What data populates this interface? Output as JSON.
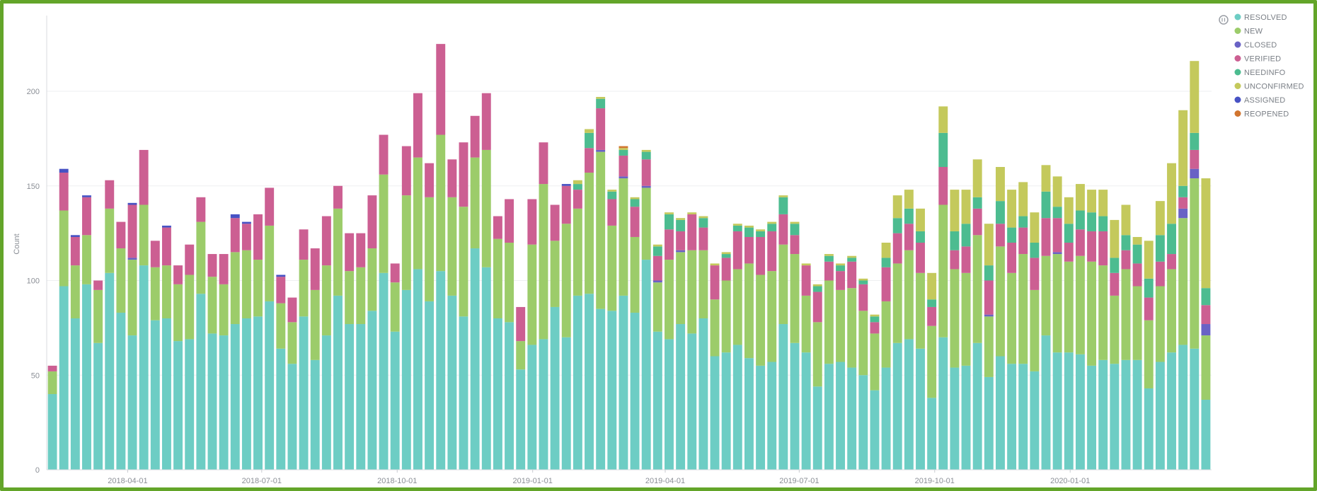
{
  "chart_data": {
    "type": "bar",
    "stacked": true,
    "ylabel": "Count",
    "ylim": [
      0,
      240
    ],
    "yticks": [
      0,
      50,
      100,
      150,
      200
    ],
    "xlim": [
      "2018-02-05",
      "2020-04-06"
    ],
    "xticks": [
      "2018-04-01",
      "2018-07-01",
      "2018-10-01",
      "2019-01-01",
      "2019-04-01",
      "2019-07-01",
      "2019-10-01",
      "2020-01-01"
    ],
    "interval": "week",
    "legend_position": "top-right",
    "series": [
      {
        "name": "RESOLVED",
        "color": "#6dcdc4",
        "values": [
          40,
          97,
          80,
          98,
          67,
          104,
          83,
          71,
          108,
          79,
          80,
          68,
          69,
          93,
          72,
          71,
          77,
          80,
          81,
          89,
          64,
          56,
          81,
          58,
          71,
          92,
          77,
          77,
          84,
          104,
          73,
          95,
          106,
          89,
          105,
          92,
          81,
          117,
          107,
          80,
          78,
          53,
          66,
          69,
          86,
          70,
          92,
          93,
          85,
          84,
          92,
          83,
          111,
          73,
          69,
          77,
          72,
          80,
          60,
          62,
          66,
          59,
          55,
          57,
          77,
          67,
          62,
          44,
          56,
          57,
          54,
          50,
          42,
          54,
          67,
          69,
          64,
          38,
          70,
          54,
          55,
          67,
          49,
          60,
          56,
          56,
          52,
          71,
          62,
          62,
          61,
          55,
          58,
          56,
          58,
          58,
          43,
          57,
          62,
          66,
          64,
          37
        ]
      },
      {
        "name": "NEW",
        "color": "#9ccc6a",
        "values": [
          12,
          40,
          28,
          26,
          28,
          34,
          34,
          40,
          32,
          28,
          28,
          30,
          34,
          38,
          30,
          27,
          38,
          36,
          30,
          40,
          24,
          22,
          30,
          37,
          37,
          46,
          28,
          30,
          33,
          52,
          26,
          50,
          59,
          55,
          72,
          52,
          58,
          48,
          62,
          42,
          42,
          15,
          53,
          82,
          35,
          60,
          46,
          64,
          83,
          45,
          62,
          40,
          38,
          26,
          42,
          38,
          44,
          36,
          30,
          38,
          40,
          50,
          48,
          48,
          42,
          47,
          30,
          34,
          44,
          38,
          42,
          34,
          30,
          35,
          42,
          47,
          40,
          38,
          70,
          52,
          49,
          57,
          32,
          58,
          48,
          58,
          43,
          42,
          52,
          48,
          52,
          55,
          50,
          36,
          48,
          39,
          36,
          40,
          44,
          67,
          90,
          34
        ]
      },
      {
        "name": "CLOSED",
        "color": "#6962c5",
        "values": [
          0,
          0,
          0,
          0,
          0,
          0,
          0,
          1,
          0,
          0,
          0,
          0,
          0,
          0,
          0,
          0,
          0,
          0,
          0,
          0,
          0,
          0,
          0,
          0,
          0,
          0,
          0,
          0,
          0,
          0,
          0,
          0,
          0,
          0,
          0,
          0,
          0,
          0,
          0,
          0,
          0,
          0,
          0,
          0,
          0,
          0,
          0,
          0,
          1,
          0,
          1,
          0,
          1,
          1,
          0,
          1,
          0,
          0,
          0,
          0,
          0,
          0,
          0,
          0,
          0,
          0,
          0,
          0,
          0,
          0,
          0,
          0,
          0,
          0,
          0,
          0,
          0,
          0,
          0,
          0,
          0,
          0,
          1,
          0,
          0,
          0,
          0,
          0,
          1,
          0,
          0,
          0,
          0,
          0,
          0,
          0,
          0,
          0,
          0,
          5,
          5,
          6
        ]
      },
      {
        "name": "VERIFIED",
        "color": "#cc5f92",
        "values": [
          3,
          20,
          15,
          20,
          5,
          15,
          14,
          28,
          29,
          14,
          20,
          10,
          16,
          13,
          12,
          16,
          18,
          14,
          24,
          20,
          14,
          13,
          16,
          22,
          26,
          12,
          20,
          18,
          28,
          21,
          10,
          26,
          34,
          18,
          48,
          20,
          34,
          22,
          30,
          12,
          23,
          18,
          24,
          22,
          19,
          20,
          10,
          13,
          22,
          14,
          11,
          16,
          14,
          13,
          16,
          10,
          19,
          12,
          18,
          12,
          20,
          14,
          20,
          21,
          16,
          10,
          16,
          16,
          10,
          10,
          14,
          14,
          6,
          18,
          16,
          14,
          16,
          10,
          20,
          10,
          14,
          14,
          18,
          12,
          16,
          14,
          17,
          20,
          18,
          10,
          14,
          16,
          18,
          12,
          10,
          12,
          12,
          13,
          8,
          6,
          10,
          10
        ]
      },
      {
        "name": "NEEDINFO",
        "color": "#4cbc90",
        "values": [
          0,
          0,
          0,
          0,
          0,
          0,
          0,
          0,
          0,
          0,
          0,
          0,
          0,
          0,
          0,
          0,
          0,
          0,
          0,
          0,
          0,
          0,
          0,
          0,
          0,
          0,
          0,
          0,
          0,
          0,
          0,
          0,
          0,
          0,
          0,
          0,
          0,
          0,
          0,
          0,
          0,
          0,
          0,
          0,
          0,
          0,
          3,
          8,
          5,
          4,
          3,
          4,
          4,
          5,
          8,
          6,
          0,
          5,
          0,
          2,
          3,
          5,
          3,
          4,
          9,
          6,
          0,
          3,
          3,
          3,
          2,
          2,
          3,
          5,
          8,
          8,
          6,
          4,
          18,
          10,
          12,
          6,
          8,
          12,
          8,
          6,
          8,
          14,
          6,
          10,
          10,
          10,
          8,
          8,
          8,
          10,
          10,
          14,
          16,
          6,
          9,
          9
        ]
      },
      {
        "name": "UNCONFIRMED",
        "color": "#c4c95c",
        "values": [
          0,
          0,
          0,
          0,
          0,
          0,
          0,
          0,
          0,
          0,
          0,
          0,
          0,
          0,
          0,
          0,
          0,
          0,
          0,
          0,
          0,
          0,
          0,
          0,
          0,
          0,
          0,
          0,
          0,
          0,
          0,
          0,
          0,
          0,
          0,
          0,
          0,
          0,
          0,
          0,
          0,
          0,
          0,
          0,
          0,
          0,
          2,
          2,
          1,
          1,
          1,
          1,
          1,
          1,
          1,
          1,
          1,
          1,
          1,
          1,
          1,
          1,
          1,
          1,
          1,
          1,
          1,
          1,
          1,
          1,
          1,
          1,
          1,
          8,
          12,
          10,
          12,
          14,
          14,
          22,
          18,
          20,
          22,
          18,
          20,
          18,
          16,
          14,
          16,
          14,
          14,
          12,
          14,
          20,
          16,
          4,
          20,
          18,
          32,
          40,
          38,
          58
        ]
      },
      {
        "name": "ASSIGNED",
        "color": "#4752c4",
        "values": [
          0,
          2,
          1,
          1,
          0,
          0,
          0,
          1,
          0,
          0,
          1,
          0,
          0,
          0,
          0,
          0,
          2,
          1,
          0,
          0,
          1,
          0,
          0,
          0,
          0,
          0,
          0,
          0,
          0,
          0,
          0,
          0,
          0,
          0,
          0,
          0,
          0,
          0,
          0,
          0,
          0,
          0,
          0,
          0,
          0,
          1,
          0,
          0,
          0,
          0,
          0,
          0,
          0,
          0,
          0,
          0,
          0,
          0,
          0,
          0,
          0,
          0,
          0,
          0,
          0,
          0,
          0,
          0,
          0,
          0,
          0,
          0,
          0,
          0,
          0,
          0,
          0,
          0,
          0,
          0,
          0,
          0,
          0,
          0,
          0,
          0,
          0,
          0,
          0,
          0,
          0,
          0,
          0,
          0,
          0,
          0,
          0,
          0,
          0,
          0,
          0,
          0
        ]
      },
      {
        "name": "REOPENED",
        "color": "#d1752f",
        "values": [
          0,
          0,
          0,
          0,
          0,
          0,
          0,
          0,
          0,
          0,
          0,
          0,
          0,
          0,
          0,
          0,
          0,
          0,
          0,
          0,
          0,
          0,
          0,
          0,
          0,
          0,
          0,
          0,
          0,
          0,
          0,
          0,
          0,
          0,
          0,
          0,
          0,
          0,
          0,
          0,
          0,
          0,
          0,
          0,
          0,
          0,
          0,
          0,
          0,
          0,
          1,
          0,
          0,
          0,
          0,
          0,
          0,
          0,
          0,
          0,
          0,
          0,
          0,
          0,
          0,
          0,
          0,
          0,
          0,
          0,
          0,
          0,
          0,
          0,
          0,
          0,
          0,
          0,
          0,
          0,
          0,
          0,
          0,
          0,
          0,
          0,
          0,
          0,
          0,
          0,
          0,
          0,
          0,
          0,
          0,
          0,
          0,
          0,
          0,
          0,
          0,
          0
        ]
      }
    ]
  },
  "legend": {
    "toggle_icon": "legend-toggle-icon"
  }
}
